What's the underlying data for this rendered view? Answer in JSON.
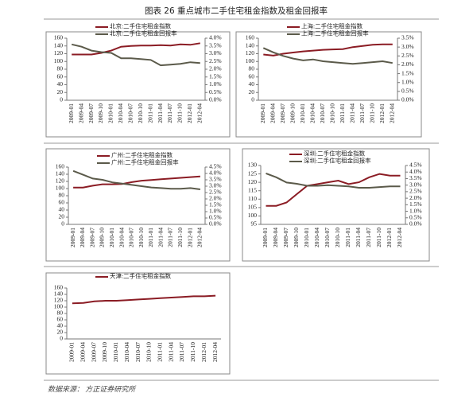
{
  "title": "图表 26  重点城市二手住宅租金指数及租金回报率",
  "source": "数据来源：  方正证券研究所",
  "chart_data": [
    {
      "type": "line",
      "categories": [
        "2009-01",
        "2009-04",
        "2009-07",
        "2009-10",
        "2010-01",
        "2010-04",
        "2010-07",
        "2010-10",
        "2011-01",
        "2011-04",
        "2011-07",
        "2011-10",
        "2012-01",
        "2012-04"
      ],
      "series": [
        {
          "name": "北京:二手住宅租金指数",
          "color": "#8b1c24",
          "values": [
            118,
            118,
            118,
            122,
            128,
            138,
            140,
            141,
            141,
            142,
            141,
            144,
            143,
            147
          ]
        },
        {
          "name": "北京:二手住宅租金回报率",
          "color": "#5b5a4a",
          "axis": "y2",
          "values": [
            3.6,
            3.45,
            3.2,
            3.1,
            3.05,
            2.7,
            2.7,
            2.65,
            2.6,
            2.25,
            2.3,
            2.35,
            2.45,
            2.4
          ]
        }
      ],
      "ylim": [
        0,
        160
      ],
      "yticks": [
        0,
        20,
        40,
        60,
        80,
        100,
        120,
        140,
        160
      ],
      "y2lim": [
        0,
        4.0
      ],
      "y2ticks": [
        {
          "value": 0,
          "label": "0.0%"
        },
        {
          "value": 0.5,
          "label": "0.5%"
        },
        {
          "value": 1.0,
          "label": "1.0%"
        },
        {
          "value": 1.5,
          "label": "1.5%"
        },
        {
          "value": 2.0,
          "label": "2.0%"
        },
        {
          "value": 2.5,
          "label": "2.5%"
        },
        {
          "value": 3.0,
          "label": "3.0%"
        },
        {
          "value": 3.5,
          "label": "3.5%"
        },
        {
          "value": 4.0,
          "label": "4.0%"
        }
      ]
    },
    {
      "type": "line",
      "categories": [
        "2009-01",
        "2009-04",
        "2009-07",
        "2009-10",
        "2010-01",
        "2010-04",
        "2010-07",
        "2010-10",
        "2011-01",
        "2011-04",
        "2011-07",
        "2011-10",
        "2012-01",
        "2012-04"
      ],
      "series": [
        {
          "name": "上海:二手住宅租金指数",
          "color": "#8b1c24",
          "values": [
            118,
            115,
            120,
            123,
            126,
            128,
            130,
            131,
            132,
            137,
            140,
            143,
            144,
            144
          ]
        },
        {
          "name": "上海:二手住宅租金回报率",
          "color": "#5b5a4a",
          "axis": "y2",
          "values": [
            2.95,
            2.7,
            2.5,
            2.35,
            2.25,
            2.3,
            2.2,
            2.15,
            2.1,
            2.05,
            2.1,
            2.15,
            2.2,
            2.1
          ]
        }
      ],
      "ylim": [
        0,
        160
      ],
      "yticks": [
        0,
        20,
        40,
        60,
        80,
        100,
        120,
        140,
        160
      ],
      "y2lim": [
        0,
        3.5
      ],
      "y2ticks": [
        {
          "value": 0,
          "label": "0.0%"
        },
        {
          "value": 0.5,
          "label": "0.5%"
        },
        {
          "value": 1.0,
          "label": "1.0%"
        },
        {
          "value": 1.5,
          "label": "1.5%"
        },
        {
          "value": 2.0,
          "label": "2.0%"
        },
        {
          "value": 2.5,
          "label": "2.5%"
        },
        {
          "value": 3.0,
          "label": "3.0%"
        },
        {
          "value": 3.5,
          "label": "3.5%"
        }
      ]
    },
    {
      "type": "line",
      "categories": [
        "2009-01",
        "2009-04",
        "2009-07",
        "2009-10",
        "2010-01",
        "2010-04",
        "2010-07",
        "2010-10",
        "2011-01",
        "2011-04",
        "2011-07",
        "2011-10",
        "2012-01",
        "2012-04"
      ],
      "series": [
        {
          "name": "广州:二手住宅租金指数",
          "color": "#8b1c24",
          "values": [
            103,
            103,
            108,
            112,
            112,
            113,
            118,
            122,
            124,
            126,
            128,
            130,
            132,
            134
          ]
        },
        {
          "name": "广州:二手住宅租金回报率",
          "color": "#5b5a4a",
          "axis": "y2",
          "values": [
            4.2,
            3.9,
            3.6,
            3.5,
            3.3,
            3.2,
            3.1,
            3.0,
            2.9,
            2.85,
            2.8,
            2.8,
            2.85,
            2.75
          ]
        }
      ],
      "ylim": [
        0,
        160
      ],
      "yticks": [
        0,
        20,
        40,
        60,
        80,
        100,
        120,
        140,
        160
      ],
      "y2lim": [
        0,
        4.5
      ],
      "y2ticks": [
        {
          "value": 0,
          "label": "0.0%"
        },
        {
          "value": 0.5,
          "label": "0.5%"
        },
        {
          "value": 1.0,
          "label": "1.0%"
        },
        {
          "value": 1.5,
          "label": "1.5%"
        },
        {
          "value": 2.0,
          "label": "2.0%"
        },
        {
          "value": 2.5,
          "label": "2.5%"
        },
        {
          "value": 3.0,
          "label": "3.0%"
        },
        {
          "value": 3.5,
          "label": "3.5%"
        },
        {
          "value": 4.0,
          "label": "4.0%"
        },
        {
          "value": 4.5,
          "label": "4.5%"
        }
      ]
    },
    {
      "type": "line",
      "categories": [
        "2009-01",
        "2009-04",
        "2009-07",
        "2009-10",
        "2010-01",
        "2010-04",
        "2010-07",
        "2010-10",
        "2011-01",
        "2011-04",
        "2011-07",
        "2011-10",
        "2012-01",
        "2012-04"
      ],
      "series": [
        {
          "name": "深圳:二手住宅租金指数",
          "color": "#8b1c24",
          "values": [
            106,
            106,
            108,
            113,
            118,
            119,
            120,
            121,
            119,
            120,
            123,
            125,
            124,
            124
          ]
        },
        {
          "name": "深圳:二手住宅租金回报率",
          "color": "#5b5a4a",
          "axis": "y2",
          "values": [
            3.9,
            3.6,
            3.2,
            3.1,
            2.95,
            2.95,
            3.0,
            2.95,
            2.9,
            2.8,
            2.8,
            2.85,
            2.9,
            2.9
          ]
        }
      ],
      "ylim": [
        95,
        130
      ],
      "yticks": [
        95,
        100,
        105,
        110,
        115,
        120,
        125,
        130
      ],
      "y2lim": [
        0,
        4.5
      ],
      "y2ticks": [
        {
          "value": 0,
          "label": "0.0%"
        },
        {
          "value": 0.5,
          "label": "0.5%"
        },
        {
          "value": 1.0,
          "label": "1.0%"
        },
        {
          "value": 1.5,
          "label": "1.5%"
        },
        {
          "value": 2.0,
          "label": "2.0%"
        },
        {
          "value": 2.5,
          "label": "2.5%"
        },
        {
          "value": 3.0,
          "label": "3.0%"
        },
        {
          "value": 3.5,
          "label": "3.5%"
        },
        {
          "value": 4.0,
          "label": "4.0%"
        },
        {
          "value": 4.5,
          "label": "4.5%"
        }
      ]
    },
    {
      "type": "line",
      "categories": [
        "2009-01",
        "2009-04",
        "2009-07",
        "2009-10",
        "2010-01",
        "2010-04",
        "2010-07",
        "2010-10",
        "2011-01",
        "2011-04",
        "2011-07",
        "2011-10",
        "2012-01",
        "2012-04"
      ],
      "series": [
        {
          "name": "天津:二手住宅租金指数",
          "color": "#8b1c24",
          "values": [
            112,
            113,
            118,
            120,
            120,
            122,
            124,
            126,
            128,
            130,
            132,
            134,
            134,
            136
          ]
        }
      ],
      "ylim": [
        0,
        160
      ],
      "yticks": [
        0,
        20,
        40,
        60,
        80,
        100,
        120,
        140,
        160
      ]
    }
  ]
}
